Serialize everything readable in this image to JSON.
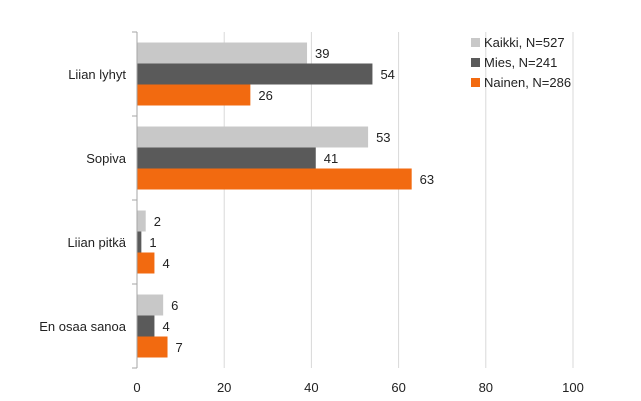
{
  "chart_data": {
    "type": "bar",
    "orientation": "horizontal",
    "title": "",
    "xlabel": "",
    "ylabel": "",
    "categories": [
      "Liian lyhyt",
      "Sopiva",
      "Liian pitkä",
      "En osaa sanoa"
    ],
    "series": [
      {
        "name": "Kaikki, N=527",
        "color": "#c8c8c8",
        "values": [
          39,
          53,
          2,
          6
        ]
      },
      {
        "name": "Mies, N=241",
        "color": "#5a5a5a",
        "values": [
          54,
          41,
          1,
          4
        ]
      },
      {
        "name": "Nainen, N=286",
        "color": "#f26a10",
        "values": [
          26,
          63,
          4,
          7
        ]
      }
    ],
    "xlim": [
      0,
      100
    ],
    "xticks": [
      0,
      20,
      40,
      60,
      80,
      100
    ],
    "grid": "vertical",
    "legend": "top-right",
    "data_labels": true
  }
}
